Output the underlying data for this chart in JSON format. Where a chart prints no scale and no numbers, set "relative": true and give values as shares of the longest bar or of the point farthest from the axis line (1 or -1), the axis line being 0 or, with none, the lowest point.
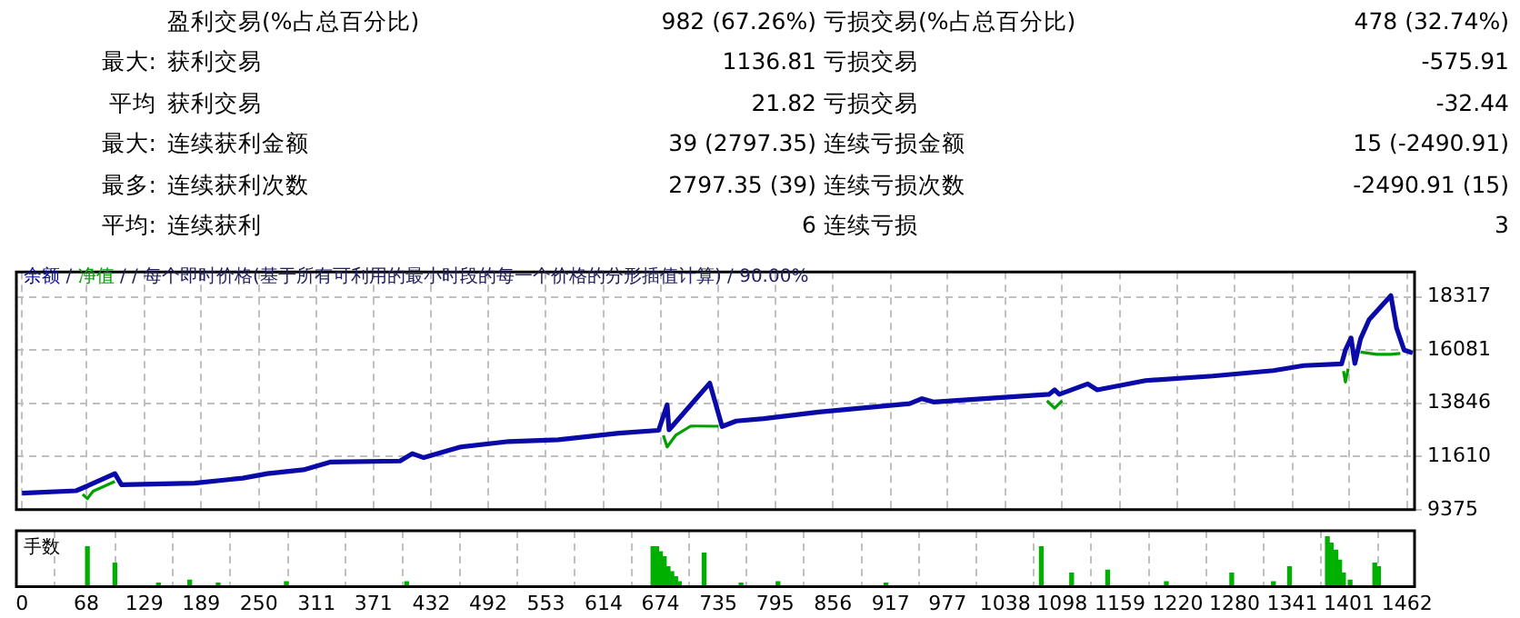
{
  "chart_data": [
    {
      "type": "other",
      "annotations": [
        "盈利交易(%占总百分比)",
        "982 (67.26%)",
        "亏损交易(%占总百分比)",
        "478 (32.74%)",
        "最大:",
        "获利交易",
        "1136.81",
        "亏损交易",
        "-575.91",
        "平均",
        "获利交易",
        "21.82",
        "亏损交易",
        "-32.44",
        "最大:",
        "连续获利金额",
        "39 (2797.35)",
        "连续亏损金额",
        "15 (-2490.91)",
        "最多:",
        "连续获利次数",
        "2797.35 (39)",
        "连续亏损次数",
        "-2490.91 (15)",
        "平均:",
        "连续获利",
        "6",
        "连续亏损",
        "3"
      ]
    },
    {
      "type": "line",
      "title": "/ 每个即时价格(基于所有可利用的最小时段的每一个价格的分形插值计算) / 90.00%",
      "annotations": [
        "/"
      ],
      "legend": "top left",
      "grid": true,
      "marker": "none",
      "tick_labels": "y",
      "xlim": [
        -6,
        1470
      ],
      "xticks": [
        0,
        68,
        129,
        189,
        250,
        311,
        371,
        432,
        492,
        553,
        614,
        674,
        735,
        795,
        856,
        917,
        977,
        1038,
        1098,
        1159,
        1220,
        1280,
        1341,
        1401,
        1462
      ],
      "ylim": [
        9375,
        19365
      ],
      "yticks": [
        9375,
        11610,
        13846,
        16081,
        18317
      ],
      "series": [
        {
          "name": "余额",
          "color": "#0a0aa8",
          "x": [
            0,
            57,
            69,
            98,
            105,
            182,
            233,
            259,
            297,
            326,
            399,
            412,
            424,
            463,
            514,
            566,
            630,
            672,
            681,
            683,
            706,
            726,
            739,
            754,
            783,
            841,
            937,
            950,
            962,
            1084,
            1090,
            1095,
            1125,
            1135,
            1186,
            1257,
            1321,
            1353,
            1393,
            1397,
            1403,
            1407,
            1413,
            1422,
            1445,
            1451,
            1459,
            1468
          ],
          "values": [
            10070,
            10170,
            10370,
            10890,
            10420,
            10490,
            10700,
            10890,
            11050,
            11380,
            11420,
            11730,
            11560,
            12010,
            12240,
            12310,
            12590,
            12710,
            13780,
            12730,
            13780,
            14690,
            12870,
            13100,
            13200,
            13480,
            13830,
            14040,
            13900,
            14220,
            14410,
            14220,
            14660,
            14410,
            14800,
            14990,
            15220,
            15430,
            15500,
            16080,
            16590,
            15520,
            16550,
            17360,
            18370,
            17010,
            16080,
            15960
          ]
        },
        {
          "name": "净值",
          "color": "#00a000",
          "x": [
            64,
            69,
            75,
            98,
            100,
            677,
            681,
            690,
            706,
            735,
            737,
            1082,
            1090,
            1098,
            1100,
            1395,
            1397,
            1400,
            1402,
            1413,
            1430,
            1445,
            1455
          ],
          "values": [
            10020,
            9840,
            10150,
            10560,
            null,
            12500,
            12010,
            12500,
            12890,
            12880,
            null,
            13950,
            13640,
            13950,
            null,
            15200,
            14740,
            15300,
            null,
            16000,
            15900,
            15900,
            15940
          ]
        }
      ]
    },
    {
      "type": "bar",
      "title": "手数",
      "relative": true,
      "grid": "x",
      "tick_labels": "x",
      "color": "#00b000",
      "xlim": [
        -6,
        1470
      ],
      "xticks": [
        0,
        68,
        129,
        189,
        250,
        311,
        371,
        432,
        492,
        553,
        614,
        674,
        735,
        795,
        856,
        917,
        977,
        1038,
        1098,
        1159,
        1220,
        1280,
        1341,
        1401,
        1462
      ],
      "x": [
        69,
        98,
        144,
        177,
        207,
        279,
        406,
        666,
        670,
        674,
        678,
        682,
        686,
        690,
        694,
        720,
        759,
        798,
        912,
        1076,
        1108,
        1146,
        1208,
        1277,
        1321,
        1338,
        1378,
        1382,
        1387,
        1391,
        1395,
        1402,
        1428,
        1432
      ],
      "values": [
        0.8,
        0.47,
        0.07,
        0.13,
        0.07,
        0.1,
        0.1,
        0.8,
        0.8,
        0.7,
        0.6,
        0.4,
        0.3,
        0.2,
        0.1,
        0.67,
        0.07,
        0.1,
        0.07,
        0.8,
        0.27,
        0.33,
        0.1,
        0.27,
        0.1,
        0.4,
        1,
        0.87,
        0.73,
        0.53,
        0.27,
        0.13,
        0.47,
        0.4
      ]
    }
  ]
}
